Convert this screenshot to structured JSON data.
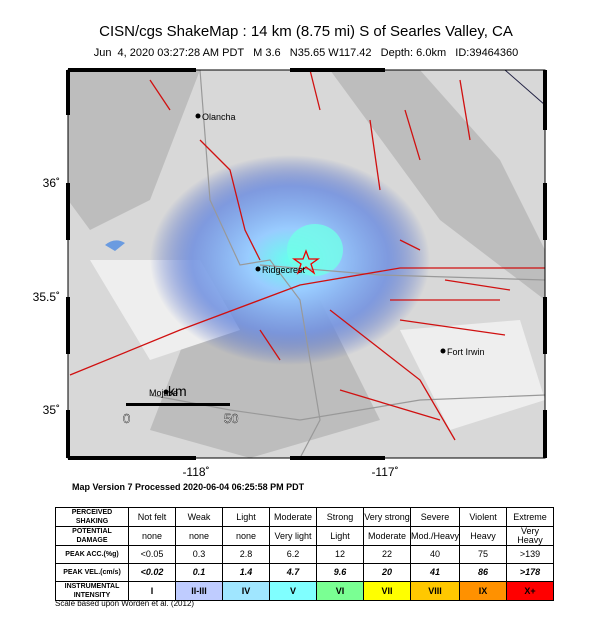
{
  "title": "CISN/cgs ShakeMap : 14 km (8.75 mi) S of Searles Valley, CA",
  "subtitle": "Jun  4, 2020 03:27:28 AM PDT   M 3.6   N35.65 W117.42   Depth: 6.0km   ID:39464360",
  "map": {
    "lat_labels": [
      "36˚",
      "35.5˚",
      "35˚"
    ],
    "lon_labels": [
      "-118˚",
      "-117˚"
    ],
    "places": [
      "Olancha",
      "Ridgecrest",
      "Fort Irwin",
      "Mojave"
    ],
    "scale": {
      "unit": "km",
      "ticks": [
        "0",
        "50"
      ]
    }
  },
  "version_note": "Map Version 7 Processed 2020-06-04 06:25:58 PM PDT",
  "legend_table": {
    "rows": [
      {
        "label": "PERCEIVED SHAKING",
        "cells": [
          "Not felt",
          "Weak",
          "Light",
          "Moderate",
          "Strong",
          "Very strong",
          "Severe",
          "Violent",
          "Extreme"
        ]
      },
      {
        "label": "POTENTIAL DAMAGE",
        "cells": [
          "none",
          "none",
          "none",
          "Very light",
          "Light",
          "Moderate",
          "Mod./Heavy",
          "Heavy",
          "Very Heavy"
        ]
      },
      {
        "label": "PEAK ACC.(%g)",
        "cells": [
          "<0.05",
          "0.3",
          "2.8",
          "6.2",
          "12",
          "22",
          "40",
          "75",
          ">139"
        ]
      },
      {
        "label": "PEAK VEL.(cm/s)",
        "cells": [
          "<0.02",
          "0.1",
          "1.4",
          "4.7",
          "9.6",
          "20",
          "41",
          "86",
          ">178"
        ]
      },
      {
        "label": "INSTRUMENTAL INTENSITY",
        "cells": [
          "I",
          "II-III",
          "IV",
          "V",
          "VI",
          "VII",
          "VIII",
          "IX",
          "X+"
        ]
      }
    ],
    "intensity_colors": [
      "#ffffff",
      "#bfccff",
      "#a0e6ff",
      "#80ffff",
      "#7aff93",
      "#ffff00",
      "#ffc800",
      "#ff9100",
      "#ff0000"
    ]
  },
  "footnote": "Scale based upon Worden et al. (2012)"
}
